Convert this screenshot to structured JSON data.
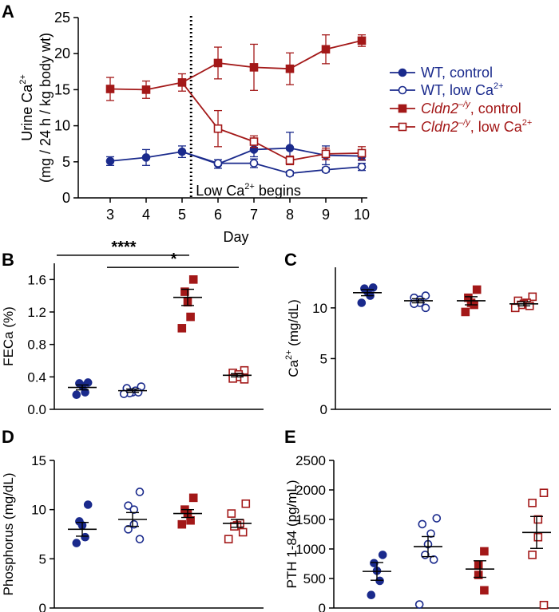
{
  "colors": {
    "wt": "#1a2a8c",
    "cldn": "#a31818",
    "axis": "#000000"
  },
  "legend": {
    "entries": [
      {
        "plain": "WT, control",
        "italic": "",
        "sup": ""
      },
      {
        "plain": "WT, low Ca",
        "italic": "",
        "sup": "2+"
      },
      {
        "plain": ", control",
        "italic": "Cldn2",
        "sup": "–/y"
      },
      {
        "plain": ", low Ca",
        "italic": "Cldn2",
        "sup": "–/y",
        "sup2": "2+"
      }
    ]
  },
  "chart_data": [
    {
      "panel": "A",
      "type": "line",
      "xlabel": "Day",
      "ylabel_line1": "Urine Ca",
      "ylabel_line1_sup": "2+",
      "ylabel_line2": "(mg / 24 h / kg body wt)",
      "ylim": [
        0,
        25
      ],
      "yticks": [
        0,
        5,
        10,
        15,
        20,
        25
      ],
      "xticks": [
        3,
        4,
        5,
        6,
        7,
        8,
        9,
        10
      ],
      "annotation": "Low Ca",
      "annotation_sup": "2+",
      "annotation_tail": " begins",
      "divider_x": 5.25,
      "series": [
        {
          "name": "WT, control",
          "group": "wt",
          "filled": true,
          "marker": "circle",
          "x": [
            3,
            4,
            5,
            6,
            7,
            8,
            9,
            10
          ],
          "y": [
            5.1,
            5.6,
            6.4,
            4.7,
            6.7,
            6.9,
            5.9,
            5.8
          ],
          "err": [
            0.6,
            1.1,
            0.8,
            0.6,
            1.0,
            2.2,
            1.3,
            0.6
          ]
        },
        {
          "name": "WT, low Ca2+",
          "group": "wt",
          "filled": false,
          "marker": "circle",
          "x": [
            6,
            7,
            8,
            9,
            10
          ],
          "y": [
            4.8,
            4.8,
            3.4,
            3.9,
            4.3
          ],
          "err": [
            0.0,
            0.6,
            0.3,
            0.3,
            0.5
          ],
          "start": [
            5,
            6.4
          ]
        },
        {
          "name": "Cldn2-/y, control",
          "group": "cldn",
          "filled": true,
          "marker": "square",
          "x": [
            3,
            4,
            5,
            6,
            7,
            8,
            9,
            10
          ],
          "y": [
            15.1,
            15.0,
            16.0,
            18.7,
            18.1,
            17.9,
            20.6,
            21.8
          ],
          "err": [
            1.6,
            1.2,
            1.2,
            2.2,
            3.2,
            2.2,
            2.0,
            0.8
          ]
        },
        {
          "name": "Cldn2-/y, low Ca2+",
          "group": "cldn",
          "filled": false,
          "marker": "square",
          "x": [
            6,
            7,
            8,
            9,
            10
          ],
          "y": [
            9.6,
            7.8,
            5.2,
            6.1,
            6.2
          ],
          "err": [
            2.5,
            0.8,
            0.6,
            0.8,
            0.9
          ],
          "start": [
            5,
            16.0
          ]
        }
      ]
    },
    {
      "panel": "B",
      "type": "scatter",
      "ylabel": "FECa (%)",
      "ylim": [
        0,
        1.8
      ],
      "yticks": [
        0.0,
        0.4,
        0.8,
        1.2,
        1.6
      ],
      "yticklabels": [
        "0.0",
        "0.4",
        "0.8",
        "1.2",
        "1.6"
      ],
      "sig": [
        {
          "label": "****",
          "from": 0,
          "to": 2,
          "y": 1.9
        },
        {
          "label": "*",
          "from": 1,
          "to": 3,
          "y": 1.75
        }
      ],
      "groups": [
        {
          "name": "WT, control",
          "group": "wt",
          "filled": true,
          "marker": "circle",
          "points": [
            0.33,
            0.32,
            0.29,
            0.21,
            0.18
          ],
          "mean": 0.27,
          "sem": 0.03
        },
        {
          "name": "WT, low Ca2+",
          "group": "wt",
          "filled": false,
          "marker": "circle",
          "points": [
            0.28,
            0.26,
            0.23,
            0.21,
            0.2,
            0.21,
            0.19
          ],
          "mean": 0.23,
          "sem": 0.02
        },
        {
          "name": "Cldn2-/y, control",
          "group": "cldn",
          "filled": true,
          "marker": "square",
          "points": [
            1.6,
            1.45,
            1.32,
            1.14,
            1.0
          ],
          "mean": 1.38,
          "sem": 0.1
        },
        {
          "name": "Cldn2-/y, low Ca2+",
          "group": "cldn",
          "filled": false,
          "marker": "square",
          "points": [
            0.48,
            0.45,
            0.43,
            0.4,
            0.38,
            0.37
          ],
          "mean": 0.42,
          "sem": 0.02
        }
      ]
    },
    {
      "panel": "C",
      "type": "scatter",
      "ylabel": "Ca",
      "ylabel_sup": "2+",
      "ylabel_tail": " (mg/dL)",
      "ylim": [
        0,
        14
      ],
      "yticks": [
        0,
        5,
        10
      ],
      "yticklabels": [
        "0",
        "5",
        "10"
      ],
      "groups": [
        {
          "name": "WT, control",
          "group": "wt",
          "filled": true,
          "marker": "circle",
          "points": [
            12.0,
            11.9,
            11.6,
            11.2,
            10.5
          ],
          "mean": 11.5,
          "sem": 0.3
        },
        {
          "name": "WT, low Ca2+",
          "group": "wt",
          "filled": false,
          "marker": "circle",
          "points": [
            11.2,
            11.0,
            10.8,
            10.5,
            10.4,
            10.0
          ],
          "mean": 10.7,
          "sem": 0.2
        },
        {
          "name": "Cldn2-/y, control",
          "group": "cldn",
          "filled": true,
          "marker": "square",
          "points": [
            11.8,
            11.0,
            10.5,
            10.3,
            9.6
          ],
          "mean": 10.7,
          "sem": 0.4
        },
        {
          "name": "Cldn2-/y, low Ca2+",
          "group": "cldn",
          "filled": false,
          "marker": "square",
          "points": [
            11.1,
            10.7,
            10.5,
            10.4,
            10.3,
            10.2,
            10.0
          ],
          "mean": 10.4,
          "sem": 0.2
        }
      ]
    },
    {
      "panel": "D",
      "type": "scatter",
      "ylabel": "Phosphorus (mg/dL)",
      "ylim": [
        0,
        15
      ],
      "yticks": [
        0,
        5,
        10,
        15
      ],
      "yticklabels": [
        "0",
        "5",
        "10",
        "15"
      ],
      "groups": [
        {
          "name": "WT, control",
          "group": "wt",
          "filled": true,
          "marker": "circle",
          "points": [
            10.5,
            8.8,
            8.4,
            7.2,
            6.6
          ],
          "mean": 8.0,
          "sem": 0.7
        },
        {
          "name": "WT, low Ca2+",
          "group": "wt",
          "filled": false,
          "marker": "circle",
          "points": [
            11.8,
            10.4,
            10.0,
            8.5,
            8.0,
            7.0
          ],
          "mean": 9.0,
          "sem": 0.7
        },
        {
          "name": "Cldn2-/y, control",
          "group": "cldn",
          "filled": true,
          "marker": "square",
          "points": [
            11.2,
            10.0,
            9.6,
            8.9,
            8.5
          ],
          "mean": 9.6,
          "sem": 0.4
        },
        {
          "name": "Cldn2-/y, low Ca2+",
          "group": "cldn",
          "filled": false,
          "marker": "square",
          "points": [
            10.6,
            9.6,
            8.6,
            8.4,
            8.3,
            7.7,
            7.0
          ],
          "mean": 8.6,
          "sem": 0.4
        }
      ]
    },
    {
      "panel": "E",
      "type": "scatter",
      "ylabel": "PTH 1-84 (pg/mL)",
      "ylim": [
        0,
        2500
      ],
      "yticks": [
        0,
        500,
        1000,
        1500,
        2000,
        2500
      ],
      "yticklabels": [
        "0",
        "500",
        "1000",
        "1500",
        "2000",
        "2500"
      ],
      "groups": [
        {
          "name": "WT, control",
          "group": "wt",
          "filled": true,
          "marker": "circle",
          "points": [
            900,
            760,
            630,
            460,
            220
          ],
          "mean": 620,
          "sem": 150
        },
        {
          "name": "WT, low Ca2+",
          "group": "wt",
          "filled": false,
          "marker": "circle",
          "points": [
            1520,
            1420,
            1260,
            1080,
            900,
            820,
            60
          ],
          "mean": 1040,
          "sem": 170
        },
        {
          "name": "Cldn2-/y, control",
          "group": "cldn",
          "filled": true,
          "marker": "square",
          "points": [
            960,
            720,
            560,
            300
          ],
          "mean": 660,
          "sem": 140
        },
        {
          "name": "Cldn2-/y, low Ca2+",
          "group": "cldn",
          "filled": false,
          "marker": "square",
          "points": [
            1950,
            1780,
            1500,
            1200,
            900,
            50
          ],
          "mean": 1280,
          "sem": 270
        }
      ]
    }
  ]
}
